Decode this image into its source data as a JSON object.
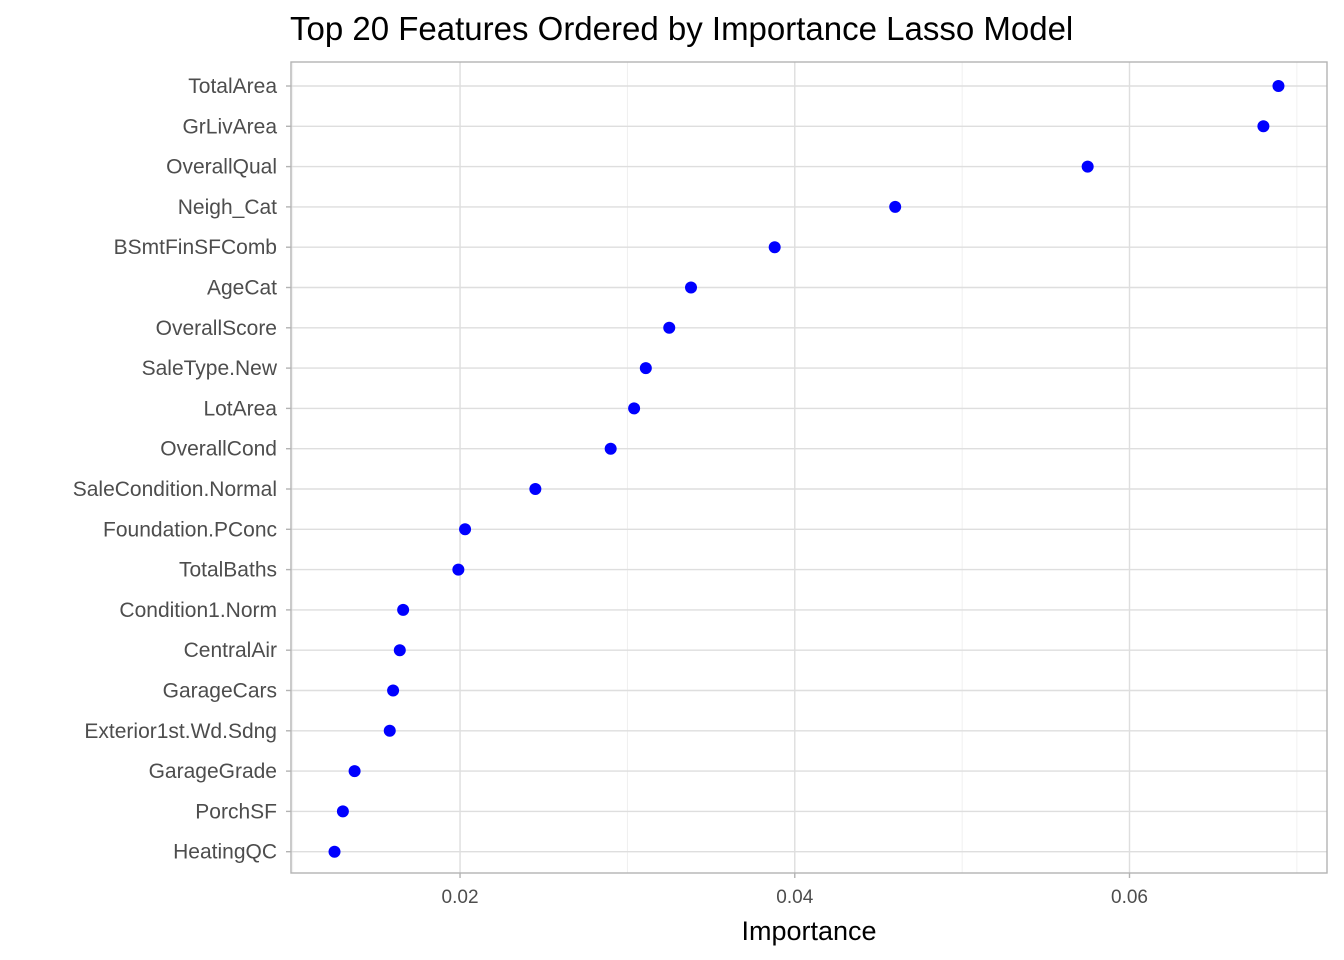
{
  "chart_data": {
    "type": "scatter",
    "title": "Top 20 Features Ordered by Importance  Lasso Model",
    "xlabel": "Importance",
    "ylabel": "",
    "xlim": [
      0.0099,
      0.0718
    ],
    "xticks": [
      0.02,
      0.04,
      0.06
    ],
    "xtick_labels": [
      "0.02",
      "0.04",
      "0.06"
    ],
    "grid": true,
    "legend": "none",
    "point_color": "#0000ff",
    "categories": [
      "TotalArea",
      "GrLivArea",
      "OverallQual",
      "Neigh_Cat",
      "BSmtFinSFComb",
      "AgeCat",
      "OverallScore",
      "SaleType.New",
      "LotArea",
      "OverallCond",
      "SaleCondition.Normal",
      "Foundation.PConc",
      "TotalBaths",
      "Condition1.Norm",
      "CentralAir",
      "GarageCars",
      "Exterior1st.Wd.Sdng",
      "GarageGrade",
      "PorchSF",
      "HeatingQC"
    ],
    "values": [
      0.0689,
      0.068,
      0.0575,
      0.046,
      0.0388,
      0.0338,
      0.0325,
      0.0311,
      0.0304,
      0.029,
      0.0245,
      0.0203,
      0.0199,
      0.0166,
      0.0164,
      0.016,
      0.0158,
      0.0137,
      0.013,
      0.0125
    ]
  }
}
